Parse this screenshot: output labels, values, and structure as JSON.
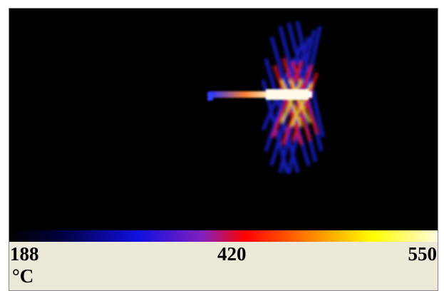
{
  "scale": {
    "min_label": "188",
    "mid_label": "420",
    "max_label": "550",
    "unit": "°C"
  }
}
